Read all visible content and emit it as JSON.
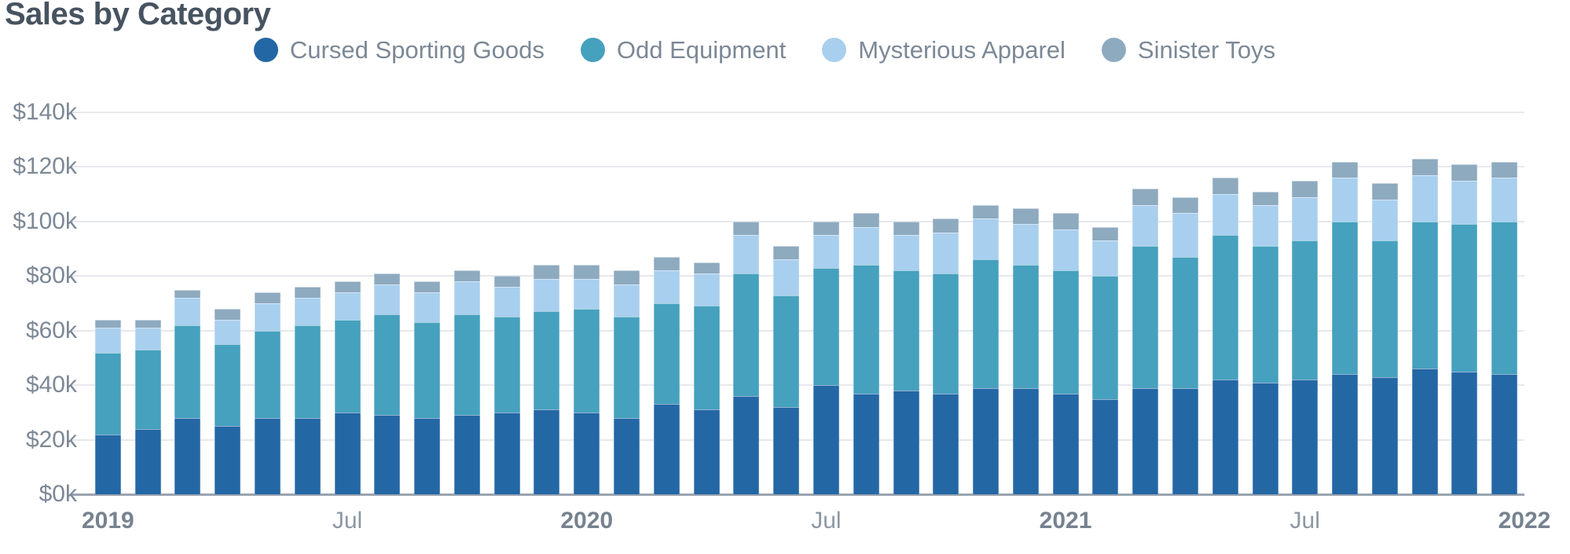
{
  "title": {
    "text": "Sales by Category",
    "color": "#475360"
  },
  "legend": {
    "text_color": "#7C8896",
    "items": [
      {
        "label": "Cursed Sporting Goods",
        "color": "#2467A5"
      },
      {
        "label": "Odd Equipment",
        "color": "#46A1BE"
      },
      {
        "label": "Mysterious Apparel",
        "color": "#A9CFEE"
      },
      {
        "label": "Sinister Toys",
        "color": "#8EAABF"
      }
    ]
  },
  "axes": {
    "y": {
      "min": 0,
      "max": 140,
      "step": 20,
      "tick_labels": [
        "$0k",
        "$20k",
        "$40k",
        "$60k",
        "$80k",
        "$100k",
        "$120k",
        "$140k"
      ],
      "label_color": "#7C8896",
      "grid_color": "#E6E8EC",
      "axis_line_color": "#9AA4B0"
    },
    "x": {
      "label_color": "#8C97A3",
      "label_color_bold": "#76828F",
      "ticks": [
        {
          "slot": 0,
          "label": "2019",
          "bold": true
        },
        {
          "slot": 6,
          "label": "Jul",
          "bold": false
        },
        {
          "slot": 12,
          "label": "2020",
          "bold": true
        },
        {
          "slot": 18,
          "label": "Jul",
          "bold": false
        },
        {
          "slot": 24,
          "label": "2021",
          "bold": true
        },
        {
          "slot": 30,
          "label": "Jul",
          "bold": false
        },
        {
          "slot": 36,
          "label": "2022",
          "bold": true
        }
      ]
    }
  },
  "chart_data": {
    "type": "bar",
    "stacked": true,
    "title": "Sales by Category",
    "value_format": "$Nk",
    "ylim": [
      0,
      140
    ],
    "grid": "horizontal",
    "legend_position": "top",
    "categories": [
      "Jan 2019",
      "Feb 2019",
      "Mar 2019",
      "Apr 2019",
      "May 2019",
      "Jun 2019",
      "Jul 2019",
      "Aug 2019",
      "Sep 2019",
      "Oct 2019",
      "Nov 2019",
      "Dec 2019",
      "Jan 2020",
      "Feb 2020",
      "Mar 2020",
      "Apr 2020",
      "May 2020",
      "Jun 2020",
      "Jul 2020",
      "Aug 2020",
      "Sep 2020",
      "Oct 2020",
      "Nov 2020",
      "Dec 2020",
      "Jan 2021",
      "Feb 2021",
      "Mar 2021",
      "Apr 2021",
      "May 2021",
      "Jun 2021",
      "Jul 2021",
      "Aug 2021",
      "Sep 2021",
      "Oct 2021",
      "Nov 2021",
      "Dec 2021"
    ],
    "series": [
      {
        "name": "Cursed Sporting Goods",
        "color": "#2467A5",
        "values": [
          22,
          24,
          28,
          25,
          28,
          28,
          30,
          29,
          28,
          29,
          30,
          31,
          30,
          28,
          33,
          31,
          36,
          32,
          40,
          37,
          38,
          37,
          39,
          39,
          37,
          35,
          39,
          39,
          42,
          41,
          42,
          44,
          43,
          46,
          45,
          44
        ]
      },
      {
        "name": "Odd Equipment",
        "color": "#46A1BE",
        "values": [
          30,
          29,
          34,
          30,
          32,
          34,
          34,
          37,
          35,
          37,
          35,
          36,
          38,
          37,
          37,
          38,
          45,
          41,
          43,
          47,
          44,
          44,
          47,
          45,
          45,
          45,
          52,
          48,
          53,
          50,
          51,
          56,
          50,
          54,
          54,
          56
        ]
      },
      {
        "name": "Mysterious Apparel",
        "color": "#A9CFEE",
        "values": [
          9,
          8,
          10,
          9,
          10,
          10,
          10,
          11,
          11,
          12,
          11,
          12,
          11,
          12,
          12,
          12,
          14,
          13,
          12,
          14,
          13,
          15,
          15,
          15,
          15,
          13,
          15,
          16,
          15,
          15,
          16,
          16,
          15,
          17,
          16,
          16
        ]
      },
      {
        "name": "Sinister Toys",
        "color": "#8EAABF",
        "values": [
          3,
          3,
          3,
          4,
          4,
          4,
          4,
          4,
          4,
          4,
          4,
          5,
          5,
          5,
          5,
          4,
          5,
          5,
          5,
          5,
          5,
          5,
          5,
          6,
          6,
          5,
          6,
          6,
          6,
          5,
          6,
          6,
          6,
          6,
          6,
          6
        ]
      }
    ]
  }
}
